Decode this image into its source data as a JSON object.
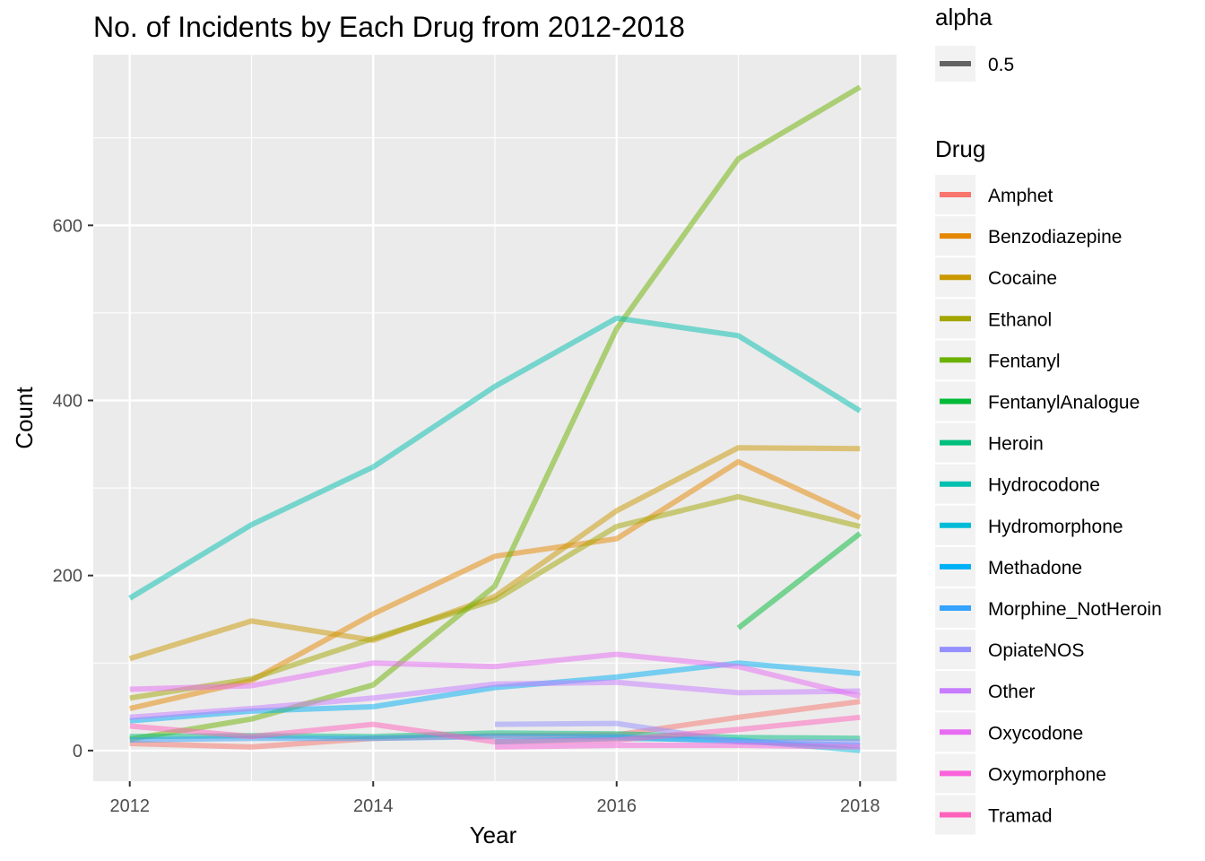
{
  "chart_data": {
    "type": "line",
    "title": "No. of Incidents by Each Drug from 2012-2018",
    "xlabel": "Year",
    "ylabel": "Count",
    "xlim": [
      2011.7,
      2018.3
    ],
    "ylim": [
      -35,
      795
    ],
    "x_ticks": [
      2012,
      2014,
      2016,
      2018
    ],
    "y_ticks": [
      0,
      200,
      400,
      600
    ],
    "x_tick_labels": [
      "2012",
      "2014",
      "2016",
      "2018"
    ],
    "y_tick_labels": [
      "0",
      "200",
      "400",
      "600"
    ],
    "grid": true,
    "line_alpha": 0.5,
    "legend_position": "right",
    "alpha_legend": {
      "title": "alpha",
      "label": "0.5",
      "color": "#333333"
    },
    "drug_legend_title": "Drug",
    "series": [
      {
        "name": "Amphet",
        "color": "#F8766D",
        "points": [
          [
            2012,
            8
          ],
          [
            2013,
            4
          ],
          [
            2014,
            14
          ],
          [
            2015,
            17
          ],
          [
            2016,
            18
          ],
          [
            2017,
            38
          ],
          [
            2018,
            56
          ]
        ]
      },
      {
        "name": "Benzodiazepine",
        "color": "#E58700",
        "points": [
          [
            2012,
            48
          ],
          [
            2013,
            80
          ],
          [
            2014,
            156
          ],
          [
            2015,
            222
          ],
          [
            2016,
            242
          ],
          [
            2017,
            330
          ],
          [
            2018,
            266
          ]
        ]
      },
      {
        "name": "Cocaine",
        "color": "#C99800",
        "points": [
          [
            2012,
            105
          ],
          [
            2013,
            148
          ],
          [
            2014,
            126
          ],
          [
            2015,
            176
          ],
          [
            2016,
            274
          ],
          [
            2017,
            346
          ],
          [
            2018,
            345
          ]
        ]
      },
      {
        "name": "Ethanol",
        "color": "#A3A500",
        "points": [
          [
            2012,
            60
          ],
          [
            2013,
            82
          ],
          [
            2014,
            128
          ],
          [
            2015,
            172
          ],
          [
            2016,
            256
          ],
          [
            2017,
            290
          ],
          [
            2018,
            256
          ]
        ]
      },
      {
        "name": "Fentanyl",
        "color": "#6BB100",
        "points": [
          [
            2012,
            13
          ],
          [
            2013,
            36
          ],
          [
            2014,
            75
          ],
          [
            2015,
            188
          ],
          [
            2016,
            482
          ],
          [
            2017,
            676
          ],
          [
            2018,
            758
          ]
        ]
      },
      {
        "name": "FentanylAnalogue",
        "color": "#00BA38",
        "points": [
          [
            2017,
            140
          ],
          [
            2018,
            248
          ]
        ]
      },
      {
        "name": "Heroin",
        "color": "#00BF7D",
        "points": [
          [
            2012,
            16
          ],
          [
            2013,
            17
          ],
          [
            2014,
            16
          ],
          [
            2015,
            20
          ],
          [
            2016,
            19
          ],
          [
            2017,
            15
          ],
          [
            2018,
            14
          ]
        ]
      },
      {
        "name": "Hydrocodone",
        "color": "#00C0AF",
        "points": [
          [
            2012,
            174
          ],
          [
            2013,
            258
          ],
          [
            2014,
            324
          ],
          [
            2015,
            416
          ],
          [
            2016,
            494
          ],
          [
            2017,
            474
          ],
          [
            2018,
            388
          ]
        ]
      },
      {
        "name": "Hydromorphone",
        "color": "#00BCD8",
        "points": [
          [
            2015,
            10
          ],
          [
            2016,
            14
          ],
          [
            2017,
            12
          ],
          [
            2018,
            0
          ]
        ]
      },
      {
        "name": "Methadone",
        "color": "#00B0F6",
        "points": [
          [
            2012,
            34
          ],
          [
            2013,
            45
          ],
          [
            2014,
            50
          ],
          [
            2015,
            72
          ],
          [
            2016,
            84
          ],
          [
            2017,
            100
          ],
          [
            2018,
            88
          ]
        ]
      },
      {
        "name": "Morphine_NotHeroin",
        "color": "#35A2FF",
        "points": [
          [
            2012,
            12
          ],
          [
            2013,
            14
          ],
          [
            2014,
            14
          ],
          [
            2015,
            16
          ],
          [
            2016,
            16
          ],
          [
            2017,
            10
          ],
          [
            2018,
            6
          ]
        ]
      },
      {
        "name": "OpiateNOS",
        "color": "#9590FF",
        "points": [
          [
            2015,
            30
          ],
          [
            2016,
            31
          ],
          [
            2017,
            10
          ],
          [
            2018,
            10
          ]
        ]
      },
      {
        "name": "Other",
        "color": "#C77CFF",
        "points": [
          [
            2012,
            38
          ],
          [
            2013,
            48
          ],
          [
            2014,
            60
          ],
          [
            2015,
            76
          ],
          [
            2016,
            78
          ],
          [
            2017,
            66
          ],
          [
            2018,
            68
          ]
        ]
      },
      {
        "name": "Oxycodone",
        "color": "#E76BF3",
        "points": [
          [
            2012,
            70
          ],
          [
            2013,
            74
          ],
          [
            2014,
            100
          ],
          [
            2015,
            96
          ],
          [
            2016,
            110
          ],
          [
            2017,
            96
          ],
          [
            2018,
            62
          ]
        ]
      },
      {
        "name": "Oxymorphone",
        "color": "#FA62DB",
        "points": [
          [
            2015,
            4
          ],
          [
            2016,
            6
          ],
          [
            2017,
            6
          ],
          [
            2018,
            4
          ]
        ]
      },
      {
        "name": "Tramad",
        "color": "#FF62BC",
        "points": [
          [
            2012,
            28
          ],
          [
            2013,
            16
          ],
          [
            2014,
            30
          ],
          [
            2015,
            10
          ],
          [
            2016,
            12
          ],
          [
            2017,
            24
          ],
          [
            2018,
            38
          ]
        ]
      }
    ]
  }
}
